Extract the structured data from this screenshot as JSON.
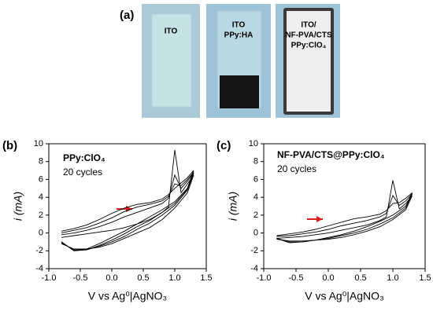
{
  "photos": {
    "label": "(a)",
    "samples": [
      {
        "lines": [
          "ITO"
        ]
      },
      {
        "lines": [
          "ITO",
          "PPy:HA"
        ]
      },
      {
        "lines": [
          "ITO/",
          "NF-PVA/CTS",
          "PPy:ClO₄"
        ]
      }
    ]
  },
  "chart_data": [
    {
      "type": "line",
      "panel": "(b)",
      "title": "PPy:ClO₄",
      "annotation": "20 cycles",
      "x_label": "V vs Ag⁰|AgNO₃",
      "y_label": "i (mA)",
      "x": [
        -0.8,
        -0.6,
        -0.4,
        -0.2,
        0,
        0.2,
        0.4,
        0.6,
        0.8,
        0.9,
        1.0,
        1.1,
        1.2,
        1.3,
        1.2,
        1.0,
        0.8,
        0.6,
        0.4,
        0.2,
        0,
        -0.2,
        -0.4,
        -0.6,
        -0.8
      ],
      "series": [
        {
          "color": "#000000",
          "values": [
            -0.5,
            -0.3,
            -0.1,
            0.1,
            0.3,
            0.6,
            1.0,
            1.5,
            2.3,
            2.9,
            9.3,
            4.5,
            5.5,
            6.5,
            4.5,
            2.8,
            1.5,
            0.6,
            0.0,
            -0.6,
            -1.2,
            -1.6,
            -1.8,
            -1.8,
            -1.2
          ]
        },
        {
          "color": "#000000",
          "values": [
            -0.2,
            0.0,
            0.3,
            0.7,
            1.2,
            1.8,
            2.3,
            2.8,
            3.3,
            3.9,
            6.5,
            5.0,
            5.8,
            6.7,
            4.8,
            3.1,
            2.0,
            1.1,
            0.4,
            -0.4,
            -1.0,
            -1.5,
            -1.9,
            -1.9,
            -1.1
          ]
        },
        {
          "color": "#000000",
          "values": [
            0.0,
            0.3,
            0.6,
            1.1,
            1.7,
            2.4,
            2.9,
            3.2,
            3.6,
            4.1,
            5.5,
            5.3,
            6.0,
            6.8,
            4.9,
            3.3,
            2.3,
            1.4,
            0.7,
            -0.1,
            -0.8,
            -1.4,
            -1.9,
            -2.0,
            -1.0
          ]
        },
        {
          "color": "#000000",
          "values": [
            0.2,
            0.5,
            0.9,
            1.5,
            2.2,
            2.8,
            3.2,
            3.4,
            3.8,
            4.3,
            5.0,
            5.6,
            6.2,
            7.0,
            5.0,
            3.5,
            2.6,
            1.8,
            1.0,
            0.2,
            -0.5,
            -1.2,
            -1.8,
            -2.0,
            -1.0
          ]
        }
      ],
      "xlim": [
        -1.0,
        1.5
      ],
      "xticks": [
        {
          "value": -1.0,
          "label": "-1.0"
        },
        -0.5,
        {
          "value": 0,
          "label": "0.0"
        },
        0.5,
        {
          "value": 1.0,
          "label": "1.0"
        },
        1.5
      ],
      "ylim": [
        -4,
        10
      ],
      "yticks": [
        -4,
        -2,
        0,
        2,
        4,
        6,
        8,
        10
      ]
    },
    {
      "type": "line",
      "panel": "(c)",
      "title": "NF-PVA/CTS@PPy:ClO₄",
      "annotation": "20 cycles",
      "x_label": "V vs Ag⁰|AgNO₃",
      "y_label": "i (mA)",
      "x": [
        -0.8,
        -0.6,
        -0.4,
        -0.2,
        0,
        0.2,
        0.4,
        0.6,
        0.8,
        0.9,
        1.0,
        1.1,
        1.2,
        1.3,
        1.2,
        1.0,
        0.8,
        0.6,
        0.4,
        0.2,
        0,
        -0.2,
        -0.4,
        -0.6,
        -0.8
      ],
      "series": [
        {
          "color": "#000000",
          "values": [
            -0.6,
            -0.5,
            -0.4,
            -0.2,
            0.0,
            0.3,
            0.6,
            0.9,
            1.4,
            1.8,
            5.9,
            2.7,
            3.3,
            4.2,
            2.6,
            1.5,
            0.7,
            0.2,
            -0.2,
            -0.5,
            -0.7,
            -0.8,
            -0.9,
            -0.9,
            -0.7
          ]
        },
        {
          "color": "#000000",
          "values": [
            -0.4,
            -0.3,
            -0.1,
            0.1,
            0.4,
            0.8,
            1.1,
            1.4,
            1.8,
            2.2,
            4.2,
            3.1,
            3.6,
            4.4,
            2.8,
            1.7,
            1.0,
            0.4,
            0.0,
            -0.3,
            -0.6,
            -0.8,
            -1.0,
            -1.0,
            -0.6
          ]
        },
        {
          "color": "#000000",
          "values": [
            -0.3,
            -0.1,
            0.1,
            0.4,
            0.8,
            1.2,
            1.6,
            1.8,
            2.1,
            2.5,
            3.3,
            3.4,
            3.9,
            4.5,
            3.0,
            2.0,
            1.3,
            0.7,
            0.2,
            -0.2,
            -0.5,
            -0.8,
            -1.0,
            -1.1,
            -0.6
          ]
        }
      ],
      "xlim": [
        -1.0,
        1.5
      ],
      "xticks": [
        {
          "value": -1.0,
          "label": "-1.0"
        },
        -0.5,
        {
          "value": 0,
          "label": "0.0"
        },
        0.5,
        {
          "value": 1.0,
          "label": "1.0"
        },
        1.5
      ],
      "ylim": [
        -4,
        10
      ],
      "yticks": [
        -4,
        -2,
        0,
        2,
        4,
        6,
        8,
        10
      ]
    }
  ]
}
